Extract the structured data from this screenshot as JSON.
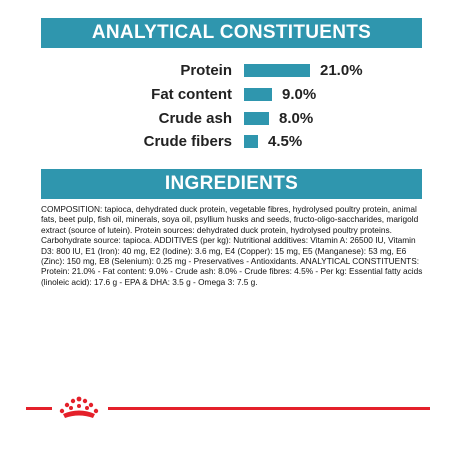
{
  "headings": {
    "analytical": "ANALYTICAL CONSTITUENTS",
    "ingredients": "INGREDIENTS"
  },
  "constituents": [
    {
      "label": "Protein",
      "value": "21.0%",
      "percent": 21.0
    },
    {
      "label": "Fat content",
      "value": "9.0%",
      "percent": 9.0
    },
    {
      "label": "Crude ash",
      "value": "8.0%",
      "percent": 8.0
    },
    {
      "label": "Crude fibers",
      "value": "4.5%",
      "percent": 4.5
    }
  ],
  "composition_text": "COMPOSITION: tapioca, dehydrated duck protein, vegetable fibres, hydrolysed poultry protein, animal fats, beet pulp, fish oil, minerals, soya oil, psyllium husks and seeds, fructo-oligo-saccharides, marigold extract (source of lutein). Protein sources: dehydrated duck protein, hydrolysed poultry proteins. Carbohydrate source: tapioca. ADDITIVES (per kg): Nutritional additives: Vitamin A: 26500 IU, Vitamin D3: 800 IU, E1 (Iron): 40 mg, E2 (Iodine): 3.6 mg, E4 (Copper): 15 mg, E5 (Manganese): 53 mg, E6 (Zinc): 150 mg, E8 (Selenium): 0.25 mg - Preservatives - Antioxidants. ANALYTICAL CONSTITUENTS: Protein: 21.0% - Fat content: 9.0% - Crude ash: 8.0% - Crude fibres: 4.5% - Per kg: Essential fatty acids (linoleic acid): 17.6 g - EPA & DHA: 3.5 g - Omega 3: 7.5 g.",
  "colors": {
    "accent": "#2f96ae",
    "brand_red": "#e4202a"
  },
  "footer": {
    "logo_icon": "crown-icon"
  }
}
